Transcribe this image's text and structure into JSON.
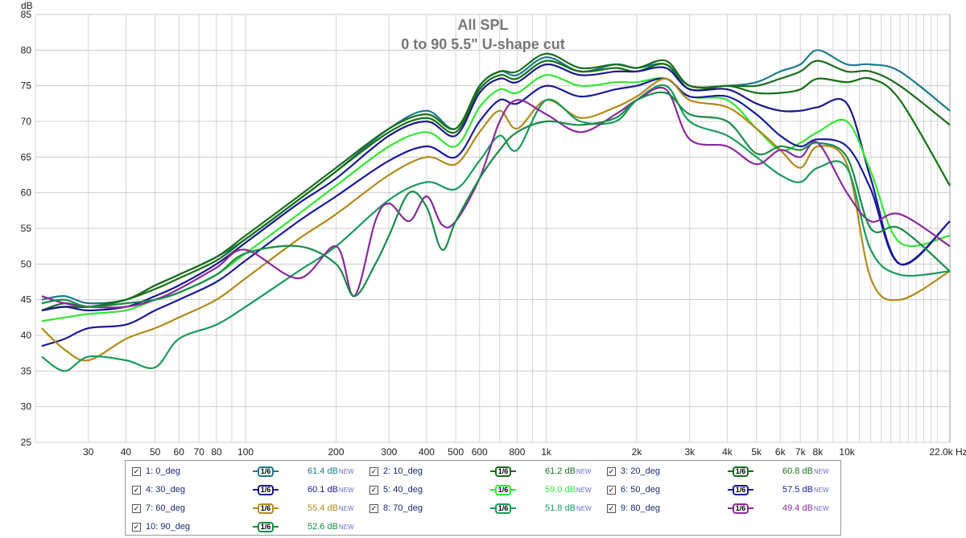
{
  "chart_data": {
    "type": "line",
    "title": "All SPL",
    "subtitle": "0 to 90 5.5\" U-shape cut",
    "ylabel": "dB",
    "xlabel": "Hz",
    "xscale": "log",
    "xlim": [
      20,
      22000
    ],
    "ylim": [
      25,
      85
    ],
    "x_ticks": [
      {
        "v": 30,
        "label": "30"
      },
      {
        "v": 40,
        "label": "40"
      },
      {
        "v": 50,
        "label": "50"
      },
      {
        "v": 60,
        "label": "60"
      },
      {
        "v": 70,
        "label": "70"
      },
      {
        "v": 80,
        "label": "80"
      },
      {
        "v": 100,
        "label": "100"
      },
      {
        "v": 200,
        "label": "200"
      },
      {
        "v": 300,
        "label": "300"
      },
      {
        "v": 400,
        "label": "400"
      },
      {
        "v": 500,
        "label": "500"
      },
      {
        "v": 600,
        "label": "600"
      },
      {
        "v": 800,
        "label": "800"
      },
      {
        "v": 1000,
        "label": "1k"
      },
      {
        "v": 2000,
        "label": "2k"
      },
      {
        "v": 3000,
        "label": "3k"
      },
      {
        "v": 4000,
        "label": "4k"
      },
      {
        "v": 5000,
        "label": "5k"
      },
      {
        "v": 6000,
        "label": "6k"
      },
      {
        "v": 7000,
        "label": "7k"
      },
      {
        "v": 8000,
        "label": "8k"
      },
      {
        "v": 10000,
        "label": "10k"
      },
      {
        "v": 22000,
        "label": "22.0k Hz"
      }
    ],
    "y_ticks": [
      25,
      30,
      35,
      40,
      45,
      50,
      55,
      60,
      65,
      70,
      75,
      80,
      85
    ],
    "grid": true,
    "legend_position": "bottom",
    "series": [
      {
        "name": "0_deg",
        "color": "#1a7a8a",
        "x": [
          21,
          25,
          30,
          40,
          50,
          60,
          80,
          100,
          150,
          200,
          300,
          400,
          500,
          600,
          700,
          800,
          1000,
          1300,
          1700,
          2000,
          2500,
          3000,
          4000,
          5000,
          6000,
          7000,
          8000,
          10000,
          12000,
          15000,
          22000
        ],
        "y": [
          45,
          45.5,
          44.5,
          45,
          47,
          48.5,
          51,
          53.5,
          59,
          63,
          69,
          71.5,
          69,
          75,
          77,
          76.5,
          79,
          77,
          78,
          77.5,
          78,
          75,
          75,
          75.5,
          77,
          78,
          80,
          78,
          78,
          77,
          71.5
        ]
      },
      {
        "name": "10_deg",
        "color": "#1f6b1f",
        "x": [
          21,
          25,
          30,
          40,
          50,
          60,
          80,
          100,
          150,
          200,
          300,
          400,
          500,
          600,
          700,
          800,
          1000,
          1300,
          1700,
          2000,
          2500,
          3000,
          4000,
          5000,
          6000,
          7000,
          8000,
          10000,
          12000,
          15000,
          22000
        ],
        "y": [
          43.5,
          44.5,
          44,
          45,
          47,
          48.5,
          51,
          54,
          59.5,
          63.5,
          69,
          71,
          69,
          75,
          77,
          77,
          79.5,
          77.5,
          78,
          77.5,
          78.5,
          75,
          75,
          75,
          76,
          77,
          78.5,
          77,
          77,
          75,
          69.5
        ]
      },
      {
        "name": "20_deg",
        "color": "#157015",
        "x": [
          21,
          25,
          30,
          40,
          50,
          60,
          80,
          100,
          150,
          200,
          300,
          400,
          500,
          600,
          700,
          800,
          1000,
          1300,
          1700,
          2000,
          2500,
          3000,
          4000,
          5000,
          6000,
          7000,
          8000,
          10000,
          12000,
          15000,
          22000
        ],
        "y": [
          43.5,
          44,
          44,
          45,
          46.5,
          48,
          50.5,
          53.5,
          59,
          63,
          68.5,
          70.5,
          68.5,
          74.5,
          76.5,
          76,
          78.5,
          77,
          77.5,
          77,
          78,
          74.5,
          75,
          74,
          74,
          74.5,
          76,
          75.5,
          76,
          73,
          61
        ]
      },
      {
        "name": "30_deg",
        "color": "#1a1a8a",
        "x": [
          21,
          25,
          30,
          40,
          50,
          60,
          80,
          100,
          150,
          200,
          300,
          400,
          500,
          600,
          700,
          800,
          1000,
          1300,
          1700,
          2000,
          2500,
          3000,
          4000,
          5000,
          6000,
          7000,
          8000,
          10000,
          12000,
          15000,
          22000
        ],
        "y": [
          43.5,
          44,
          43.5,
          44,
          45.5,
          47,
          50,
          53,
          58.5,
          62,
          68,
          70,
          68,
          74,
          76,
          75.5,
          78,
          76.5,
          77,
          77,
          77.5,
          74.5,
          74.5,
          72.5,
          71.5,
          71.5,
          72,
          72.5,
          62,
          50,
          56
        ]
      },
      {
        "name": "40_deg",
        "color": "#33e633",
        "x": [
          21,
          25,
          30,
          40,
          50,
          60,
          80,
          100,
          150,
          200,
          300,
          400,
          500,
          600,
          700,
          800,
          1000,
          1300,
          1700,
          2000,
          2500,
          3000,
          4000,
          5000,
          6000,
          7000,
          8000,
          10000,
          12000,
          15000,
          22000
        ],
        "y": [
          42,
          42.5,
          43,
          43.5,
          45,
          46,
          48.5,
          51.5,
          57,
          61,
          66.5,
          68.5,
          66.5,
          72,
          74.5,
          74,
          76.5,
          75,
          75.5,
          75.5,
          76,
          73.5,
          73,
          69,
          66,
          67,
          68.5,
          70,
          63,
          53,
          54
        ]
      },
      {
        "name": "50_deg",
        "color": "#1a1a99",
        "x": [
          21,
          25,
          30,
          40,
          50,
          60,
          80,
          100,
          150,
          200,
          300,
          400,
          500,
          600,
          700,
          800,
          1000,
          1300,
          1700,
          2000,
          2500,
          3000,
          4000,
          5000,
          6000,
          7000,
          8000,
          10000,
          12000,
          15000,
          22000
        ],
        "y": [
          38.5,
          39.5,
          41,
          41.5,
          43.5,
          45,
          47.5,
          50.5,
          56,
          59.5,
          64.5,
          66.5,
          65,
          70,
          73,
          72.5,
          75,
          73.5,
          74.5,
          75,
          76,
          73.5,
          73.5,
          71,
          68,
          66.5,
          67.5,
          66.5,
          60.5,
          50,
          56
        ]
      },
      {
        "name": "60_deg",
        "color": "#b08a1a",
        "x": [
          21,
          25,
          30,
          40,
          50,
          60,
          80,
          100,
          150,
          200,
          300,
          400,
          500,
          600,
          700,
          800,
          1000,
          1300,
          1700,
          2000,
          2500,
          3000,
          4000,
          5000,
          6000,
          7000,
          8000,
          10000,
          12000,
          15000,
          22000
        ],
        "y": [
          41,
          38,
          36.5,
          39.5,
          41,
          42.5,
          45,
          48,
          53.5,
          57,
          62.5,
          65,
          64,
          68.5,
          71.5,
          69,
          73,
          70.5,
          72,
          73.5,
          76,
          73,
          72,
          69,
          66,
          63.5,
          66.5,
          64,
          48,
          45,
          49
        ]
      },
      {
        "name": "70_deg",
        "color": "#1a9a5a",
        "x": [
          21,
          25,
          30,
          40,
          50,
          60,
          80,
          100,
          150,
          200,
          300,
          400,
          500,
          600,
          700,
          800,
          1000,
          1300,
          1700,
          2000,
          2500,
          3000,
          4000,
          5000,
          6000,
          7000,
          8000,
          10000,
          12000,
          15000,
          22000
        ],
        "y": [
          37,
          35,
          37,
          36.5,
          35.5,
          39.5,
          41.5,
          44,
          49,
          52.5,
          59,
          61.5,
          60.5,
          64.5,
          68,
          66,
          73,
          70,
          70,
          73,
          75,
          70,
          68,
          65,
          62.5,
          61.5,
          63.5,
          63.5,
          52,
          48.5,
          49
        ]
      },
      {
        "name": "80_deg",
        "color": "#8a2a9a",
        "x": [
          21,
          25,
          30,
          40,
          50,
          60,
          80,
          100,
          150,
          200,
          230,
          270,
          300,
          350,
          400,
          450,
          500,
          600,
          700,
          800,
          1000,
          1300,
          1700,
          2000,
          2500,
          3000,
          4000,
          5000,
          6000,
          7000,
          8000,
          10000,
          12000,
          15000,
          22000
        ],
        "y": [
          45.5,
          44.5,
          44,
          44,
          45,
          46.5,
          49.5,
          52,
          48,
          52.5,
          45.5,
          56,
          58.5,
          56,
          59.5,
          55.5,
          56,
          62,
          70,
          73,
          71,
          68.5,
          71,
          73,
          74.5,
          67.5,
          66.5,
          64,
          66,
          65,
          67,
          60,
          56,
          57,
          52.5
        ]
      },
      {
        "name": "90_deg",
        "color": "#1a8a4a",
        "x": [
          21,
          25,
          30,
          40,
          50,
          60,
          80,
          100,
          150,
          200,
          230,
          270,
          300,
          350,
          400,
          450,
          500,
          600,
          700,
          800,
          1000,
          1300,
          1700,
          2000,
          2500,
          3000,
          4000,
          5000,
          6000,
          7000,
          8000,
          10000,
          12000,
          15000,
          22000
        ],
        "y": [
          44.5,
          45,
          44,
          44.5,
          45,
          46,
          48.5,
          51.5,
          52.5,
          50,
          45.5,
          50,
          54,
          60,
          58,
          52,
          56,
          62,
          66,
          68.5,
          70,
          69.5,
          70.5,
          73,
          74,
          71,
          70,
          65.5,
          66.5,
          66,
          67,
          65,
          55,
          55,
          49
        ]
      }
    ]
  },
  "legend": [
    {
      "num": "1:",
      "name": "0_deg",
      "smooth": "1/6",
      "db": "61.4 dB",
      "tag": "NEW",
      "color": "#1a7a8a"
    },
    {
      "num": "2:",
      "name": "10_deg",
      "smooth": "1/6",
      "db": "61.2 dB",
      "tag": "NEW",
      "color": "#1f6b1f"
    },
    {
      "num": "3:",
      "name": "20_deg",
      "smooth": "1/6",
      "db": "60.8 dB",
      "tag": "NEW",
      "color": "#157015"
    },
    {
      "num": "4:",
      "name": "30_deg",
      "smooth": "1/6",
      "db": "60.1 dB",
      "tag": "NEW",
      "color": "#1a1a8a"
    },
    {
      "num": "5:",
      "name": "40_deg",
      "smooth": "1/6",
      "db": "59.0 dB",
      "tag": "NEW",
      "color": "#33e633"
    },
    {
      "num": "6:",
      "name": "50_deg",
      "smooth": "1/6",
      "db": "57.5 dB",
      "tag": "NEW",
      "color": "#1a1a99"
    },
    {
      "num": "7:",
      "name": "60_deg",
      "smooth": "1/6",
      "db": "55.4 dB",
      "tag": "NEW",
      "color": "#b08a1a"
    },
    {
      "num": "8:",
      "name": "70_deg",
      "smooth": "1/6",
      "db": "51.8 dB",
      "tag": "NEW",
      "color": "#1a9a5a"
    },
    {
      "num": "9:",
      "name": "80_deg",
      "smooth": "1/6",
      "db": "49.4 dB",
      "tag": "NEW",
      "color": "#8a2a9a"
    },
    {
      "num": "10:",
      "name": "90_deg",
      "smooth": "1/6",
      "db": "52.6 dB",
      "tag": "NEW",
      "color": "#1a8a4a"
    }
  ],
  "checkbox_mark": "✓"
}
